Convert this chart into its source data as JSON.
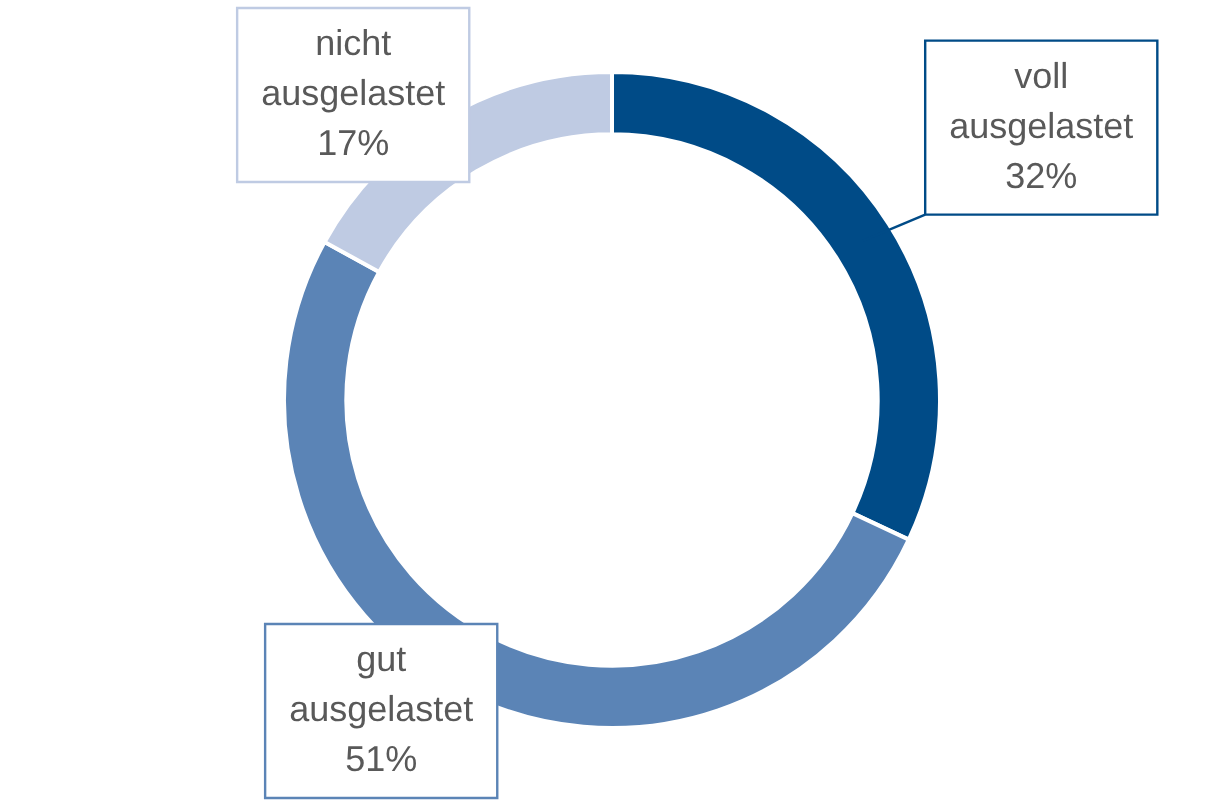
{
  "chart_data": {
    "type": "donut",
    "categories": [
      "voll ausgelastet",
      "gut ausgelastet",
      "nicht ausgelastet"
    ],
    "values": [
      32,
      51,
      17
    ],
    "colors": [
      "#004b87",
      "#5b84b6",
      "#bfcbe3"
    ],
    "value_labels": [
      "32%",
      "51%",
      "17%"
    ],
    "legend": false
  }
}
